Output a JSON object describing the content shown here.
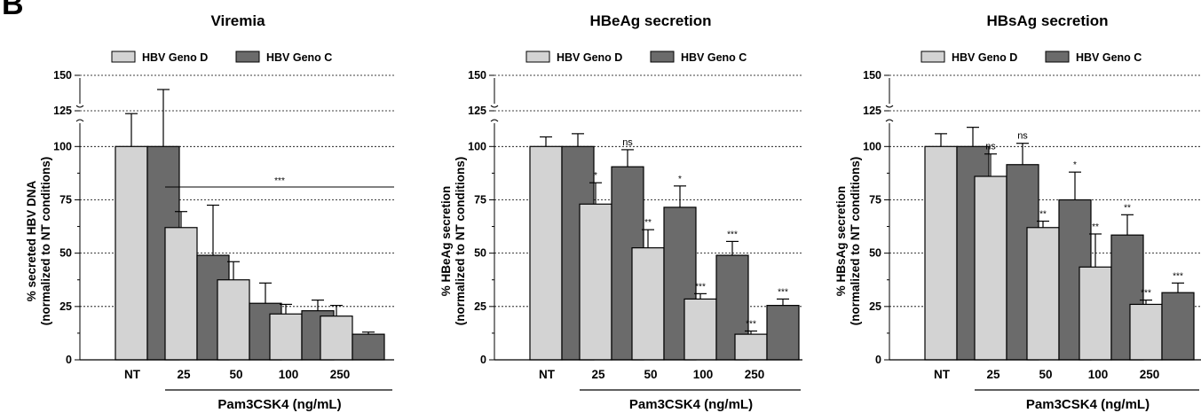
{
  "figure": {
    "panel_letter": "B",
    "shared_xlabel": "Pam3CSK4 (ng/mL)",
    "colors": {
      "geno_d": "#d3d3d3",
      "geno_c": "#6b6b6b",
      "stroke": "#000000"
    }
  },
  "chart_data": [
    {
      "type": "bar",
      "title": "Viremia",
      "ylabel_line1": "% secreted HBV DNA",
      "ylabel_line2": "(normalized to NT conditions)",
      "xlabel": "Pam3CSK4 (ng/mL)",
      "categories": [
        "NT",
        "25",
        "50",
        "100",
        "250"
      ],
      "ylim": [
        0,
        150
      ],
      "y_axis_break": [
        110,
        120
      ],
      "yticks": [
        0,
        25,
        50,
        75,
        100,
        125,
        150
      ],
      "ytick_labels": [
        "0",
        "25",
        "50",
        "75",
        "100",
        "125",
        "150"
      ],
      "dashed_gridlines": [
        25,
        50,
        75,
        100,
        125,
        150
      ],
      "legend_position": "top",
      "series": [
        {
          "name": "HBV Geno D",
          "color": "#d3d3d3",
          "values": [
            100,
            62,
            37.5,
            21.5,
            20.5
          ],
          "errors": [
            23,
            7.5,
            8.5,
            4.5,
            5
          ],
          "annotations": [
            "",
            "",
            "",
            "",
            ""
          ]
        },
        {
          "name": "HBV Geno C",
          "color": "#6b6b6b",
          "values": [
            100,
            49,
            26.5,
            23,
            12
          ],
          "errors": [
            40,
            23.5,
            9.5,
            5,
            1
          ],
          "annotations": [
            "",
            "",
            "",
            "",
            ""
          ]
        }
      ],
      "group_annotation": {
        "label": "***",
        "y": 81,
        "from_category": 1,
        "to_category": 4
      }
    },
    {
      "type": "bar",
      "title": "HBeAg secretion",
      "ylabel_line1": "% HBeAg secretion",
      "ylabel_line2": "(normalized to NT conditions)",
      "xlabel": "Pam3CSK4 (ng/mL)",
      "categories": [
        "NT",
        "25",
        "50",
        "100",
        "250"
      ],
      "ylim": [
        0,
        150
      ],
      "y_axis_break": [
        110,
        120
      ],
      "yticks": [
        0,
        25,
        50,
        75,
        100,
        125,
        150
      ],
      "ytick_labels": [
        "0",
        "25",
        "50",
        "75",
        "100",
        "125",
        "150"
      ],
      "dashed_gridlines": [
        25,
        50,
        75,
        100,
        125,
        150
      ],
      "legend_position": "top",
      "series": [
        {
          "name": "HBV Geno D",
          "color": "#d3d3d3",
          "values": [
            100,
            73,
            52.5,
            28.5,
            12
          ],
          "errors": [
            4.5,
            10,
            8.5,
            2.5,
            1.5
          ],
          "annotations": [
            "",
            "*",
            "**",
            "***",
            "***"
          ]
        },
        {
          "name": "HBV Geno C",
          "color": "#6b6b6b",
          "values": [
            100,
            90.5,
            71.5,
            49,
            25.5
          ],
          "errors": [
            6,
            8,
            10,
            6.5,
            3
          ],
          "annotations": [
            "",
            "ns",
            "*",
            "***",
            "***"
          ]
        }
      ]
    },
    {
      "type": "bar",
      "title": "HBsAg secretion",
      "ylabel_line1": "% HBsAg secretion",
      "ylabel_line2": "(normalized to NT conditions)",
      "xlabel": "Pam3CSK4 (ng/mL)",
      "categories": [
        "NT",
        "25",
        "50",
        "100",
        "250"
      ],
      "ylim": [
        0,
        150
      ],
      "y_axis_break": [
        110,
        120
      ],
      "yticks": [
        0,
        25,
        50,
        75,
        100,
        125,
        150
      ],
      "ytick_labels": [
        "0",
        "25",
        "50",
        "75",
        "100",
        "125",
        "150"
      ],
      "dashed_gridlines": [
        25,
        50,
        75,
        100,
        125,
        150
      ],
      "legend_position": "top",
      "series": [
        {
          "name": "HBV Geno D",
          "color": "#d3d3d3",
          "values": [
            100,
            86,
            62,
            43.5,
            26
          ],
          "errors": [
            6,
            10.5,
            3,
            15.5,
            2
          ],
          "annotations": [
            "",
            "ns",
            "**",
            "**",
            "***"
          ]
        },
        {
          "name": "HBV Geno C",
          "color": "#6b6b6b",
          "values": [
            100,
            91.5,
            75,
            58.5,
            31.5
          ],
          "errors": [
            9,
            10,
            13,
            9.5,
            4.5
          ],
          "annotations": [
            "",
            "ns",
            "*",
            "**",
            "***"
          ]
        }
      ]
    }
  ]
}
